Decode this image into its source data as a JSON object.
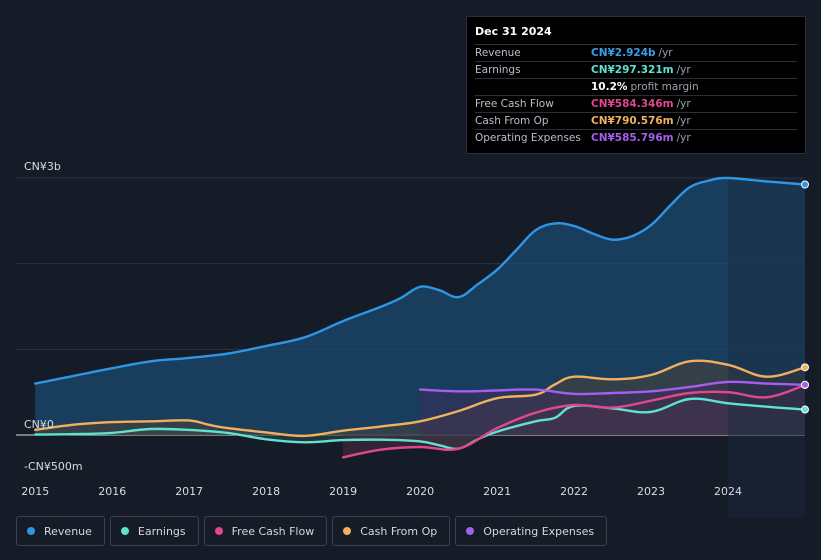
{
  "tooltip": {
    "date": "Dec 31 2024",
    "rows": [
      {
        "label": "Revenue",
        "value": "CN¥2.924b",
        "unit": "/yr",
        "color": "#3a9ee8"
      },
      {
        "label": "Earnings",
        "value": "CN¥297.321m",
        "unit": "/yr",
        "color": "#5fe3d0"
      },
      {
        "label": "",
        "value": "10.2%",
        "unit": "profit margin",
        "color": "#ffffff"
      },
      {
        "label": "Free Cash Flow",
        "value": "CN¥584.346m",
        "unit": "/yr",
        "color": "#e0488c"
      },
      {
        "label": "Cash From Op",
        "value": "CN¥790.576m",
        "unit": "/yr",
        "color": "#f0b060"
      },
      {
        "label": "Operating Expenses",
        "value": "CN¥585.796m",
        "unit": "/yr",
        "color": "#a45ef0"
      }
    ]
  },
  "legend": [
    {
      "label": "Revenue",
      "color": "#2f96e6"
    },
    {
      "label": "Earnings",
      "color": "#5fe3d0"
    },
    {
      "label": "Free Cash Flow",
      "color": "#e0488c"
    },
    {
      "label": "Cash From Op",
      "color": "#f0b060"
    },
    {
      "label": "Operating Expenses",
      "color": "#a45ef0"
    }
  ],
  "chart_data": {
    "type": "area",
    "y_unit": "CN¥ millions",
    "ylim": [
      -500,
      3000
    ],
    "y_tick_labels": [
      {
        "value": 3000,
        "label": "CN¥3b"
      },
      {
        "value": 0,
        "label": "CN¥0"
      },
      {
        "value": -500,
        "label": "-CN¥500m"
      }
    ],
    "gridlines": [
      3000,
      2000,
      1000,
      0
    ],
    "xlim": [
      2014.75,
      2025.0
    ],
    "x_ticks": [
      2015,
      2016,
      2017,
      2018,
      2019,
      2020,
      2021,
      2022,
      2023,
      2024
    ],
    "highlight_start": 2024.0,
    "series": [
      {
        "name": "Revenue",
        "color": "#2f96e6",
        "fill": "#1b4b70",
        "points": [
          [
            2015.0,
            600
          ],
          [
            2015.5,
            690
          ],
          [
            2016.0,
            780
          ],
          [
            2016.5,
            860
          ],
          [
            2017.0,
            900
          ],
          [
            2017.5,
            950
          ],
          [
            2018.0,
            1040
          ],
          [
            2018.5,
            1140
          ],
          [
            2019.0,
            1330
          ],
          [
            2019.5,
            1500
          ],
          [
            2019.75,
            1600
          ],
          [
            2020.0,
            1730
          ],
          [
            2020.25,
            1690
          ],
          [
            2020.5,
            1610
          ],
          [
            2020.75,
            1760
          ],
          [
            2021.0,
            1930
          ],
          [
            2021.25,
            2160
          ],
          [
            2021.5,
            2390
          ],
          [
            2021.75,
            2470
          ],
          [
            2022.0,
            2440
          ],
          [
            2022.25,
            2350
          ],
          [
            2022.5,
            2280
          ],
          [
            2022.75,
            2320
          ],
          [
            2023.0,
            2450
          ],
          [
            2023.25,
            2680
          ],
          [
            2023.5,
            2890
          ],
          [
            2023.75,
            2970
          ],
          [
            2024.0,
            3000
          ],
          [
            2024.5,
            2960
          ],
          [
            2025.0,
            2924
          ]
        ]
      },
      {
        "name": "Earnings",
        "color": "#5fe3d0",
        "fill": "#2a4a4a",
        "points": [
          [
            2015.0,
            5
          ],
          [
            2015.5,
            10
          ],
          [
            2016.0,
            25
          ],
          [
            2016.5,
            70
          ],
          [
            2017.0,
            60
          ],
          [
            2017.5,
            25
          ],
          [
            2018.0,
            -50
          ],
          [
            2018.5,
            -85
          ],
          [
            2019.0,
            -60
          ],
          [
            2019.5,
            -55
          ],
          [
            2020.0,
            -75
          ],
          [
            2020.25,
            -120
          ],
          [
            2020.5,
            -160
          ],
          [
            2020.75,
            -50
          ],
          [
            2021.0,
            40
          ],
          [
            2021.5,
            160
          ],
          [
            2021.75,
            200
          ],
          [
            2022.0,
            340
          ],
          [
            2022.5,
            310
          ],
          [
            2023.0,
            270
          ],
          [
            2023.5,
            420
          ],
          [
            2024.0,
            370
          ],
          [
            2024.5,
            330
          ],
          [
            2025.0,
            297
          ]
        ]
      },
      {
        "name": "Free Cash Flow",
        "color": "#e0488c",
        "fill": "#4a2a42",
        "points": [
          [
            2019.0,
            -260
          ],
          [
            2019.5,
            -170
          ],
          [
            2020.0,
            -140
          ],
          [
            2020.5,
            -160
          ],
          [
            2021.0,
            80
          ],
          [
            2021.5,
            260
          ],
          [
            2022.0,
            350
          ],
          [
            2022.5,
            320
          ],
          [
            2023.0,
            400
          ],
          [
            2023.5,
            490
          ],
          [
            2024.0,
            500
          ],
          [
            2024.5,
            440
          ],
          [
            2025.0,
            584
          ]
        ]
      },
      {
        "name": "Cash From Op",
        "color": "#f0b060",
        "fill": "#4a4234",
        "points": [
          [
            2015.0,
            60
          ],
          [
            2015.5,
            120
          ],
          [
            2016.0,
            150
          ],
          [
            2016.5,
            160
          ],
          [
            2017.0,
            170
          ],
          [
            2017.25,
            120
          ],
          [
            2017.5,
            80
          ],
          [
            2018.0,
            30
          ],
          [
            2018.5,
            -10
          ],
          [
            2019.0,
            50
          ],
          [
            2019.5,
            100
          ],
          [
            2020.0,
            160
          ],
          [
            2020.5,
            280
          ],
          [
            2021.0,
            430
          ],
          [
            2021.5,
            470
          ],
          [
            2021.75,
            590
          ],
          [
            2022.0,
            680
          ],
          [
            2022.5,
            650
          ],
          [
            2023.0,
            700
          ],
          [
            2023.5,
            860
          ],
          [
            2024.0,
            820
          ],
          [
            2024.5,
            680
          ],
          [
            2025.0,
            790
          ]
        ]
      },
      {
        "name": "Operating Expenses",
        "color": "#a45ef0",
        "fill": "#3a2c5a",
        "points": [
          [
            2020.0,
            530
          ],
          [
            2020.5,
            510
          ],
          [
            2021.0,
            520
          ],
          [
            2021.5,
            530
          ],
          [
            2022.0,
            480
          ],
          [
            2022.5,
            490
          ],
          [
            2023.0,
            510
          ],
          [
            2023.5,
            560
          ],
          [
            2024.0,
            620
          ],
          [
            2024.5,
            600
          ],
          [
            2025.0,
            586
          ]
        ]
      }
    ]
  }
}
